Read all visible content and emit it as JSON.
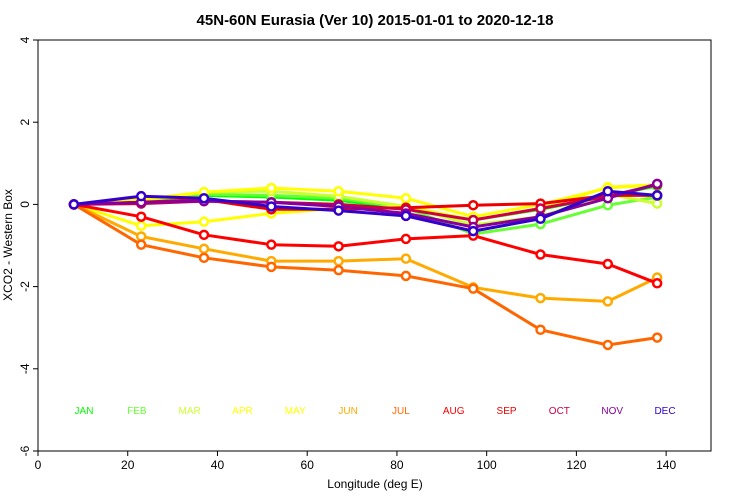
{
  "chart_data": {
    "type": "line",
    "title": "45N-60N Eurasia (Ver 10)   2015-01-01 to 2020-12-18",
    "xlabel": "Longitude (deg E)",
    "ylabel": "XCO2 - Western Box",
    "xlim": [
      0,
      150
    ],
    "ylim": [
      -6,
      4
    ],
    "xticks": [
      0,
      20,
      40,
      60,
      80,
      100,
      120,
      140
    ],
    "yticks": [
      -6,
      -4,
      -2,
      0,
      2,
      4
    ],
    "x": [
      8,
      23,
      37,
      52,
      67,
      82,
      97,
      112,
      127,
      138
    ],
    "series": [
      {
        "name": "JAN",
        "color": "#00ff00",
        "values": [
          0,
          0.1,
          0.22,
          0.18,
          0.1,
          -0.1,
          -0.38,
          -0.12,
          0.2,
          0.45
        ]
      },
      {
        "name": "FEB",
        "color": "#66ff33",
        "values": [
          0,
          0.05,
          0.25,
          0.22,
          0.15,
          -0.08,
          -0.72,
          -0.48,
          -0.02,
          0.18
        ]
      },
      {
        "name": "MAR",
        "color": "#ccff33",
        "values": [
          0,
          0.08,
          0.3,
          0.32,
          0.2,
          -0.05,
          -0.5,
          -0.3,
          0.25,
          0.02
        ]
      },
      {
        "name": "APR",
        "color": "#ffff00",
        "values": [
          0,
          -0.52,
          -0.42,
          -0.22,
          -0.1,
          -0.05,
          -0.38,
          -0.1,
          0.42,
          0.48
        ]
      },
      {
        "name": "MAY",
        "color": "#ffff00",
        "values": [
          0,
          0.12,
          0.3,
          0.4,
          0.32,
          0.15,
          -0.3,
          0,
          0.4,
          0.48
        ]
      },
      {
        "name": "JUN",
        "color": "#ffaa00",
        "values": [
          0,
          -0.78,
          -1.08,
          -1.38,
          -1.38,
          -1.32,
          -2.02,
          -2.28,
          -2.36,
          -1.78
        ]
      },
      {
        "name": "JUL",
        "color": "#ff6600",
        "values": [
          0,
          -0.98,
          -1.3,
          -1.52,
          -1.6,
          -1.74,
          -2.05,
          -3.05,
          -3.42,
          -3.24
        ]
      },
      {
        "name": "AUG",
        "color": "#ff0000",
        "values": [
          0,
          -0.3,
          -0.74,
          -0.98,
          -1.02,
          -0.84,
          -0.76,
          -1.22,
          -1.45,
          -1.92
        ]
      },
      {
        "name": "SEP",
        "color": "#ee0000",
        "values": [
          0,
          0.05,
          0.12,
          -0.12,
          -0.12,
          -0.08,
          -0.02,
          0.02,
          0.22,
          0.22
        ]
      },
      {
        "name": "OCT",
        "color": "#cc0044",
        "values": [
          0,
          0.02,
          0.08,
          0.05,
          0,
          -0.12,
          -0.38,
          -0.1,
          0.2,
          0.48
        ]
      },
      {
        "name": "NOV",
        "color": "#880099",
        "values": [
          0,
          0.05,
          0.08,
          0.05,
          -0.05,
          -0.22,
          -0.55,
          -0.3,
          0.15,
          0.5
        ]
      },
      {
        "name": "DEC",
        "color": "#3300cc",
        "values": [
          0,
          0.2,
          0.15,
          -0.05,
          -0.15,
          -0.28,
          -0.65,
          -0.35,
          0.32,
          0.22
        ]
      }
    ],
    "month_labels": [
      "JAN",
      "FEB",
      "MAR",
      "APR",
      "MAY",
      "JUN",
      "JUL",
      "AUG",
      "SEP",
      "OCT",
      "NOV",
      "DEC"
    ],
    "month_label_colors": [
      "#00ff00",
      "#66ff33",
      "#ccff33",
      "#ffff00",
      "#ffff00",
      "#ffaa00",
      "#ff6600",
      "#ff0000",
      "#ee0000",
      "#cc0044",
      "#880099",
      "#3300cc"
    ],
    "month_label_y": -5.0,
    "grid": false,
    "legend": "bottom-inline"
  }
}
